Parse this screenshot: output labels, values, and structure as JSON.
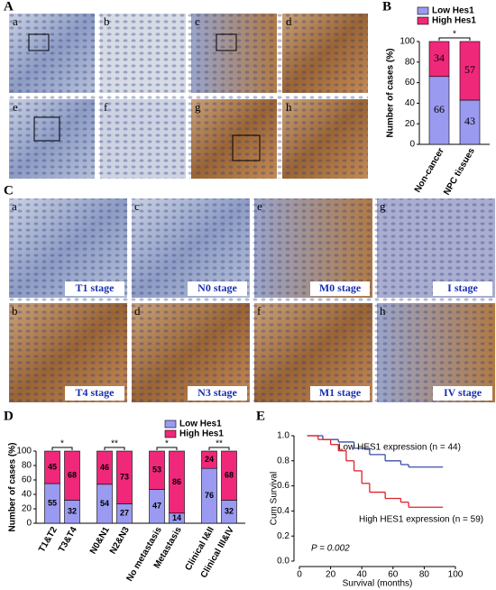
{
  "figure": {
    "panel_labels": [
      "A",
      "B",
      "C",
      "D",
      "E"
    ],
    "images_a": [
      "a",
      "b",
      "c",
      "d",
      "e",
      "f",
      "g",
      "h"
    ],
    "images_c": [
      "a",
      "c",
      "e",
      "g",
      "b",
      "d",
      "f",
      "h"
    ],
    "stages": [
      "T1 stage",
      "N0 stage",
      "M0 stage",
      "I stage",
      "T4 stage",
      "N3 stage",
      "M1 stage",
      "IV stage"
    ]
  },
  "chart_data": [
    {
      "type": "bar",
      "stacked": true,
      "ylabel": "Number of cases (%)",
      "categories": [
        "Non-cancer",
        "NPC tissues"
      ],
      "series": [
        {
          "name": "Low Hes1",
          "color": "#9a9af0",
          "values": [
            66,
            43
          ]
        },
        {
          "name": "High Hes1",
          "color": "#f0287a",
          "values": [
            34,
            57
          ]
        }
      ],
      "significance": [
        "*"
      ],
      "ylim": [
        0,
        100
      ],
      "yticks": [
        0,
        20,
        40,
        60,
        80,
        100
      ]
    },
    {
      "type": "bar",
      "stacked": true,
      "ylabel": "Number of cases (%)",
      "categories": [
        "T1&T2",
        "T3&T4",
        "N0&N1",
        "N2&N3",
        "No metastasis",
        "Metastasis",
        "Clinical I&II",
        "Clinical III&IV"
      ],
      "series": [
        {
          "name": "Low Hes1",
          "color": "#9a9af0",
          "values": [
            55,
            32,
            54,
            27,
            47,
            14,
            76,
            32
          ]
        },
        {
          "name": "High Hes1",
          "color": "#f0287a",
          "values": [
            45,
            68,
            46,
            73,
            53,
            86,
            24,
            68
          ]
        }
      ],
      "significance": [
        "*",
        "**",
        "*",
        "**"
      ],
      "ylim": [
        0,
        100
      ],
      "yticks": [
        0,
        20,
        40,
        60,
        80,
        100
      ]
    },
    {
      "type": "step",
      "xlabel": "Survival (months)",
      "ylabel": "Cum Survival",
      "series": [
        {
          "name": "Low HES1 expression (n = 44)",
          "color": "#3a4fa8",
          "x": [
            5,
            15,
            25,
            35,
            45,
            55,
            65,
            70,
            92
          ],
          "values": [
            1.0,
            0.97,
            0.95,
            0.9,
            0.85,
            0.8,
            0.77,
            0.75,
            0.75
          ]
        },
        {
          "name": "High HES1 expression (n = 59)",
          "color": "#e0202a",
          "x": [
            5,
            12,
            20,
            25,
            30,
            35,
            40,
            45,
            55,
            65,
            70,
            92
          ],
          "values": [
            1.0,
            0.97,
            0.93,
            0.88,
            0.8,
            0.72,
            0.62,
            0.55,
            0.5,
            0.47,
            0.43,
            0.43
          ]
        }
      ],
      "annotation": "P = 0.002",
      "xlim": [
        0,
        100
      ],
      "xticks": [
        0,
        20,
        40,
        60,
        80,
        100
      ],
      "ylim": [
        0,
        1.0
      ],
      "yticks": [
        {
          "value": 0,
          "label": "0.0"
        },
        0.2,
        0.4,
        0.6,
        0.8,
        {
          "value": 1,
          "label": "1.0"
        }
      ]
    }
  ]
}
